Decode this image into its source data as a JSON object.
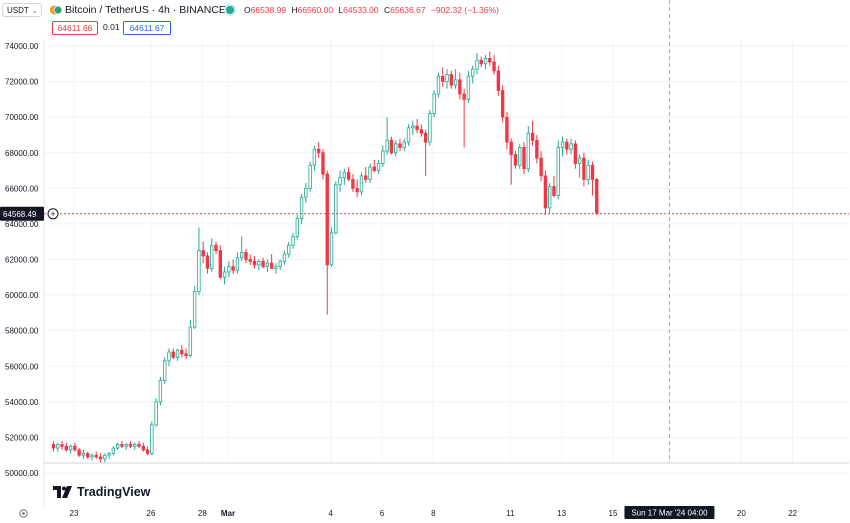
{
  "header": {
    "currency": "USDT",
    "title": "Bitcoin / TetherUS · 4h · BINANCE",
    "ohlc": {
      "o_label": "O",
      "o": "66538.99",
      "h_label": "H",
      "h": "66560.00",
      "l_label": "L",
      "l": "64533.00",
      "c_label": "C",
      "c": "65636.67",
      "change": "−902.32 (−1.36%)"
    },
    "sell_price": "64611.66",
    "spread": "0.01",
    "buy_price": "64611.67"
  },
  "logo_text": "TradingView",
  "colors": {
    "up": "#22ab94",
    "down": "#f23645",
    "grid": "#f0f3fa",
    "axis_text": "#131722"
  },
  "chart_data": {
    "type": "candlestick",
    "ylim": [
      50000,
      74000
    ],
    "y_ticks": [
      50000,
      52000,
      54000,
      56000,
      58000,
      60000,
      62000,
      64000,
      66000,
      68000,
      70000,
      72000,
      74000
    ],
    "y_tick_labels": [
      "50000.00",
      "52000.00",
      "54000.00",
      "56000.00",
      "58000.00",
      "60000.00",
      "62000.00",
      "64000.00",
      "66000.00",
      "68000.00",
      "70000.00",
      "72000.00",
      "74000.00"
    ],
    "x_ticks": [
      {
        "label": "23",
        "day": 23
      },
      {
        "label": "26",
        "day": 26
      },
      {
        "label": "28",
        "day": 28
      },
      {
        "label": "Mar",
        "day": 29
      },
      {
        "label": "4",
        "day": 33
      },
      {
        "label": "6",
        "day": 35
      },
      {
        "label": "8",
        "day": 37
      },
      {
        "label": "11",
        "day": 40
      },
      {
        "label": "13",
        "day": 42
      },
      {
        "label": "15",
        "day": 44
      },
      {
        "label": "20",
        "day": 49
      },
      {
        "label": "22",
        "day": 51
      }
    ],
    "crosshair": {
      "x_label": "Sun 17 Mar '24  04:00",
      "day": 46.2
    },
    "last_price": {
      "value": 64568.49,
      "label": "64568.49"
    },
    "candles": [
      [
        51600,
        51800,
        51200,
        51400
      ],
      [
        51400,
        51700,
        51200,
        51600
      ],
      [
        51600,
        51800,
        51300,
        51500
      ],
      [
        51500,
        51700,
        51200,
        51300
      ],
      [
        51300,
        51600,
        51100,
        51500
      ],
      [
        51500,
        51700,
        51200,
        51300
      ],
      [
        51300,
        51400,
        50900,
        51000
      ],
      [
        51000,
        51300,
        50800,
        51100
      ],
      [
        51100,
        51200,
        50800,
        50900
      ],
      [
        50900,
        51100,
        50700,
        51000
      ],
      [
        51000,
        51200,
        50800,
        50900
      ],
      [
        50900,
        51100,
        50600,
        50800
      ],
      [
        50800,
        51100,
        50600,
        51000
      ],
      [
        51000,
        51200,
        50800,
        51100
      ],
      [
        51100,
        51500,
        51000,
        51400
      ],
      [
        51400,
        51700,
        51300,
        51600
      ],
      [
        51600,
        51800,
        51400,
        51500
      ],
      [
        51500,
        51700,
        51300,
        51600
      ],
      [
        51600,
        51800,
        51400,
        51500
      ],
      [
        51500,
        51700,
        51300,
        51600
      ],
      [
        51600,
        51800,
        51400,
        51500
      ],
      [
        51500,
        51700,
        51200,
        51300
      ],
      [
        51300,
        51500,
        51000,
        51100
      ],
      [
        51100,
        52900,
        51000,
        52700
      ],
      [
        52700,
        54200,
        52600,
        54000
      ],
      [
        54000,
        55400,
        53800,
        55200
      ],
      [
        55200,
        56500,
        55000,
        56300
      ],
      [
        56300,
        57000,
        56000,
        56800
      ],
      [
        56800,
        57000,
        56400,
        56500
      ],
      [
        56500,
        57000,
        56300,
        56900
      ],
      [
        56900,
        57200,
        56500,
        56700
      ],
      [
        56700,
        57000,
        56400,
        56600
      ],
      [
        56600,
        58600,
        56500,
        58200
      ],
      [
        58200,
        60500,
        58100,
        60200
      ],
      [
        60200,
        63800,
        60000,
        62500
      ],
      [
        62500,
        63000,
        61800,
        62200
      ],
      [
        62200,
        62400,
        61200,
        61500
      ],
      [
        61500,
        63200,
        61300,
        62800
      ],
      [
        62800,
        63000,
        62300,
        62500
      ],
      [
        62500,
        62800,
        60900,
        61000
      ],
      [
        61000,
        61600,
        60600,
        61300
      ],
      [
        61300,
        61900,
        61000,
        61600
      ],
      [
        61600,
        62000,
        61200,
        61400
      ],
      [
        61400,
        62400,
        61200,
        62100
      ],
      [
        62100,
        63300,
        61900,
        62400
      ],
      [
        62400,
        62600,
        61800,
        62000
      ],
      [
        62000,
        62300,
        61700,
        61900
      ],
      [
        61900,
        62200,
        61500,
        61700
      ],
      [
        61700,
        62000,
        61400,
        61900
      ],
      [
        61900,
        62100,
        61500,
        61600
      ],
      [
        61600,
        62000,
        61300,
        61800
      ],
      [
        61800,
        62300,
        61500,
        61500
      ],
      [
        61500,
        61800,
        61200,
        61600
      ],
      [
        61600,
        62000,
        61400,
        61900
      ],
      [
        61900,
        62500,
        61700,
        62300
      ],
      [
        62300,
        63000,
        62100,
        62800
      ],
      [
        62800,
        63500,
        62600,
        63300
      ],
      [
        63300,
        64500,
        63100,
        64300
      ],
      [
        64300,
        65700,
        64000,
        65500
      ],
      [
        65500,
        66300,
        65200,
        66000
      ],
      [
        66000,
        67500,
        65800,
        67300
      ],
      [
        67300,
        68400,
        67000,
        68200
      ],
      [
        68200,
        68600,
        67700,
        68000
      ],
      [
        68000,
        68200,
        66500,
        66800
      ],
      [
        66800,
        67000,
        58900,
        61700
      ],
      [
        61700,
        63800,
        61600,
        63500
      ],
      [
        63500,
        66400,
        63400,
        66200
      ],
      [
        66200,
        67000,
        65800,
        66600
      ],
      [
        66600,
        67100,
        66200,
        66900
      ],
      [
        66900,
        67200,
        66400,
        66500
      ],
      [
        66500,
        66800,
        65800,
        66000
      ],
      [
        66000,
        66500,
        65500,
        65800
      ],
      [
        65800,
        66900,
        65600,
        66700
      ],
      [
        66700,
        67200,
        66300,
        66500
      ],
      [
        66500,
        67400,
        66300,
        67200
      ],
      [
        67200,
        67600,
        66900,
        67000
      ],
      [
        67000,
        67600,
        66800,
        67400
      ],
      [
        67400,
        68400,
        67200,
        68100
      ],
      [
        68100,
        70000,
        67900,
        68700
      ],
      [
        68700,
        68900,
        67900,
        68000
      ],
      [
        68000,
        68700,
        67800,
        68500
      ],
      [
        68500,
        68800,
        68100,
        68300
      ],
      [
        68300,
        68800,
        68100,
        68600
      ],
      [
        68600,
        69600,
        68400,
        69400
      ],
      [
        69400,
        69800,
        69000,
        69500
      ],
      [
        69500,
        69900,
        69100,
        69300
      ],
      [
        69300,
        69600,
        68900,
        69100
      ],
      [
        69100,
        69300,
        66700,
        68600
      ],
      [
        68600,
        70400,
        68400,
        70200
      ],
      [
        70200,
        71500,
        70000,
        71300
      ],
      [
        71300,
        72500,
        71100,
        72300
      ],
      [
        72300,
        72800,
        71700,
        72000
      ],
      [
        72000,
        72700,
        71600,
        72400
      ],
      [
        72400,
        72600,
        71600,
        71800
      ],
      [
        71800,
        72700,
        71600,
        72100
      ],
      [
        72100,
        72500,
        71000,
        71300
      ],
      [
        71300,
        71600,
        68300,
        71000
      ],
      [
        71000,
        72600,
        70800,
        72300
      ],
      [
        72300,
        72900,
        71900,
        72700
      ],
      [
        72700,
        73600,
        72400,
        73200
      ],
      [
        73200,
        73400,
        72800,
        73000
      ],
      [
        73000,
        73500,
        72700,
        73300
      ],
      [
        73300,
        73700,
        72900,
        73100
      ],
      [
        73100,
        73500,
        72400,
        72600
      ],
      [
        72600,
        72900,
        71200,
        71500
      ],
      [
        71500,
        71800,
        69700,
        70000
      ],
      [
        70000,
        70300,
        68200,
        68600
      ],
      [
        68600,
        68800,
        66200,
        67900
      ],
      [
        67900,
        68100,
        67100,
        67300
      ],
      [
        67300,
        68500,
        67100,
        68300
      ],
      [
        68300,
        68600,
        66800,
        67100
      ],
      [
        67100,
        69500,
        66900,
        69100
      ],
      [
        69100,
        69800,
        68400,
        68700
      ],
      [
        68700,
        69000,
        67400,
        67700
      ],
      [
        67700,
        68100,
        66400,
        66700
      ],
      [
        66700,
        67000,
        64500,
        64900
      ],
      [
        64900,
        66300,
        64600,
        66100
      ],
      [
        66100,
        66700,
        65500,
        65600
      ],
      [
        65600,
        68700,
        65400,
        68300
      ],
      [
        68300,
        68900,
        67800,
        68600
      ],
      [
        68600,
        68800,
        67900,
        68200
      ],
      [
        68200,
        68800,
        67900,
        68500
      ],
      [
        68500,
        68700,
        67100,
        67400
      ],
      [
        67400,
        67900,
        66600,
        67700
      ],
      [
        67700,
        68000,
        66100,
        66500
      ],
      [
        66500,
        67600,
        66200,
        67300
      ],
      [
        67300,
        67500,
        65600,
        66500
      ],
      [
        66500,
        66600,
        64500,
        64600
      ]
    ]
  }
}
